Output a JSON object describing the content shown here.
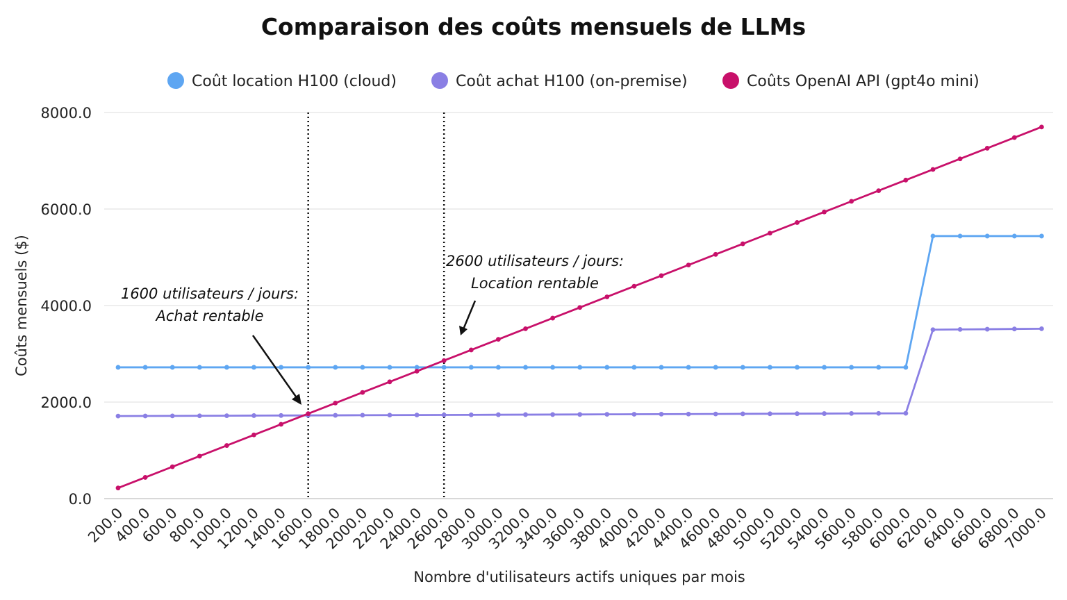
{
  "chart_data": {
    "type": "line",
    "title": "Comparaison des coûts mensuels de LLMs",
    "xlabel": "Nombre d'utilisateurs actifs uniques par mois",
    "ylabel": "Coûts mensuels ($)",
    "ylim": [
      0,
      8000
    ],
    "yticks": [
      "0.0",
      "2000.0",
      "4000.0",
      "6000.0",
      "8000.0"
    ],
    "grid": true,
    "legend_position": "top",
    "categories": [
      "200.0",
      "400.0",
      "600.0",
      "800.0",
      "1000.0",
      "1200.0",
      "1400.0",
      "1600.0",
      "1800.0",
      "2000.0",
      "2200.0",
      "2400.0",
      "2600.0",
      "2800.0",
      "3000.0",
      "3200.0",
      "3400.0",
      "3600.0",
      "3800.0",
      "4000.0",
      "4200.0",
      "4400.0",
      "4600.0",
      "4800.0",
      "5000.0",
      "5200.0",
      "5400.0",
      "5600.0",
      "5800.0",
      "6000.0",
      "6200.0",
      "6400.0",
      "6600.0",
      "6800.0",
      "7000.0"
    ],
    "series": [
      {
        "name": "Coût location H100 (cloud)",
        "color": "#5ea6f2",
        "values": [
          2720,
          2720,
          2720,
          2720,
          2720,
          2720,
          2720,
          2720,
          2720,
          2720,
          2720,
          2720,
          2720,
          2720,
          2720,
          2720,
          2720,
          2720,
          2720,
          2720,
          2720,
          2720,
          2720,
          2720,
          2720,
          2720,
          2720,
          2720,
          2720,
          2720,
          5440,
          5440,
          5440,
          5440,
          5440
        ]
      },
      {
        "name": "Coût achat H100 (on-premise)",
        "color": "#8a7fe4",
        "values": [
          1710,
          1712,
          1714,
          1716,
          1718,
          1720,
          1722,
          1724,
          1726,
          1728,
          1730,
          1732,
          1734,
          1736,
          1738,
          1740,
          1742,
          1744,
          1746,
          1748,
          1750,
          1752,
          1754,
          1756,
          1758,
          1760,
          1762,
          1764,
          1766,
          1768,
          3500,
          3505,
          3510,
          3515,
          3520
        ]
      },
      {
        "name": "Coûts OpenAI API (gpt4o mini)",
        "color": "#c8106a",
        "values": [
          220,
          440,
          660,
          880,
          1100,
          1320,
          1540,
          1760,
          1980,
          2200,
          2420,
          2640,
          2860,
          3080,
          3300,
          3520,
          3740,
          3960,
          4180,
          4400,
          4620,
          4840,
          5060,
          5280,
          5500,
          5720,
          5940,
          6160,
          6380,
          6600,
          6820,
          7040,
          7260,
          7480,
          7700
        ]
      }
    ],
    "vlines": [
      {
        "x_index": 7,
        "label": "1600.0"
      },
      {
        "x_index": 12,
        "label": "2600.0"
      }
    ],
    "annotations": [
      {
        "line1": "1600 utilisateurs / jours:",
        "line2": "Achat rentable"
      },
      {
        "line1": "2600 utilisateurs / jours:",
        "line2": "Location rentable"
      }
    ]
  }
}
